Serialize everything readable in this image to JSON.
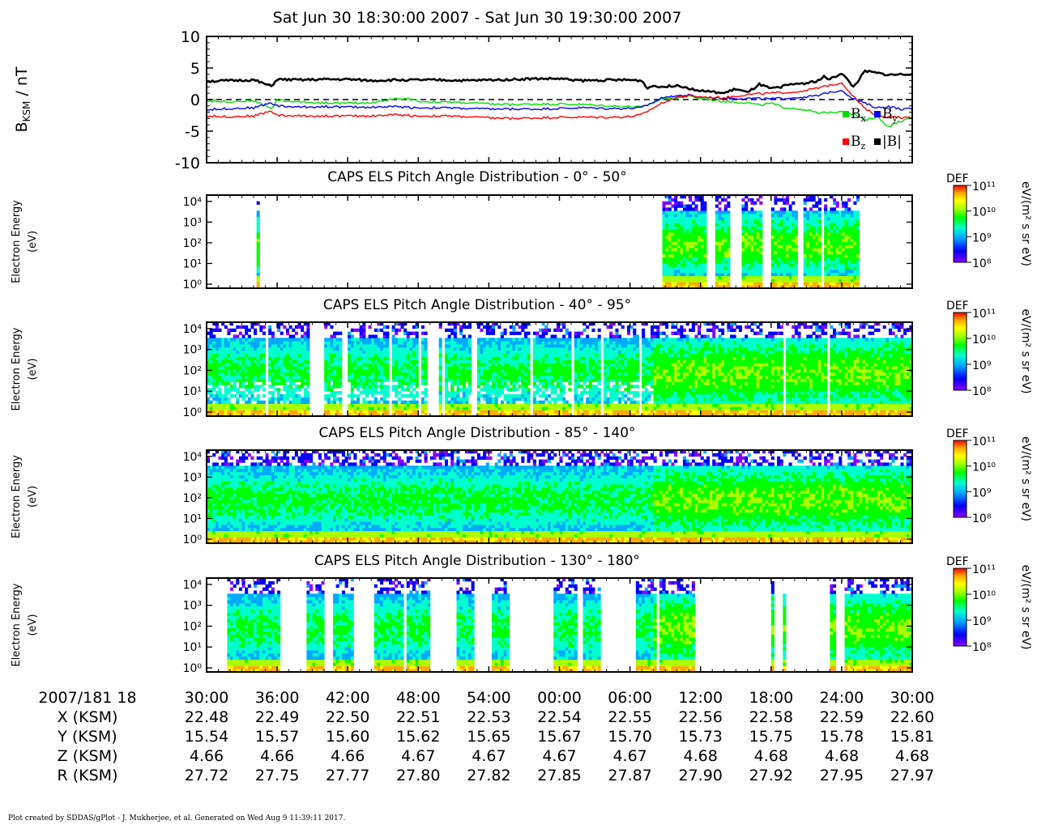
{
  "title": "Sat Jun 30 18:30:00 2007 - Sat Jun 30 19:30:00 2007",
  "footer": "Plot created by SDDAS/gPlot - J. Mukherjee, et al.  Generated on Wed Aug 9 11:39:11 2017.",
  "colors": {
    "bx": "#00dd00",
    "by": "#0000ff",
    "bz": "#ff0000",
    "bmag": "#000000",
    "colormap": [
      "#ffffff",
      "#8800ff",
      "#0000ff",
      "#00aaff",
      "#00ffcc",
      "#00ff00",
      "#aaff00",
      "#ffff00",
      "#ffaa00",
      "#ff0000"
    ]
  },
  "chart_data": [
    {
      "type": "line",
      "ylabel": "B",
      "ylabel_sub": "KSM",
      "ylabel_unit": " / nT",
      "ylim": [
        -10,
        10
      ],
      "yticks": [
        "10",
        "5",
        "0",
        "-5",
        "-10"
      ],
      "xlim_min": [
        30,
        90
      ],
      "zero_line": "dashed",
      "legend": [
        {
          "label": "B",
          "sub": "x",
          "color": "#00dd00"
        },
        {
          "label": "B",
          "sub": "y",
          "color": "#0000ff"
        },
        {
          "label": "B",
          "sub": "z",
          "color": "#ff0000"
        },
        {
          "label": "|B|",
          "sub": "",
          "color": "#000000"
        }
      ],
      "series": [
        {
          "name": "Bx",
          "color": "#00dd00",
          "x": [
            30,
            32,
            34,
            35.5,
            36,
            38,
            40,
            42,
            44,
            46,
            47.5,
            48,
            50,
            52,
            54,
            56,
            58,
            60,
            62,
            64,
            66,
            67,
            68,
            69,
            70,
            70.5,
            71,
            72,
            74,
            76,
            77,
            78,
            79,
            80,
            81,
            82,
            83,
            84,
            85,
            86,
            87,
            88,
            89,
            90
          ],
          "y": [
            -0.2,
            -0.3,
            -0.2,
            -1.4,
            -0.1,
            -0.4,
            -0.5,
            -0.6,
            -0.5,
            0.1,
            0.1,
            -0.3,
            -0.4,
            -0.5,
            -0.7,
            -0.8,
            -0.7,
            -0.7,
            -0.8,
            -1.0,
            -1.1,
            -1.2,
            -0.5,
            0.3,
            0.2,
            0.4,
            0.5,
            0.2,
            -0.3,
            -0.5,
            -0.9,
            -0.6,
            -1.2,
            -1.4,
            -1.6,
            -2.2,
            -2.0,
            -1.8,
            -2.3,
            -3.3,
            -2.7,
            -4.3,
            -3.4,
            -3.0
          ]
        },
        {
          "name": "By",
          "color": "#0000ff",
          "x": [
            30,
            32,
            34,
            35.5,
            36,
            38,
            40,
            42,
            44,
            46,
            48,
            50,
            52,
            54,
            56,
            58,
            60,
            62,
            64,
            66,
            67,
            68,
            69,
            70,
            71,
            72,
            74,
            76,
            78,
            80,
            82,
            83,
            84,
            85,
            86,
            87,
            88,
            89,
            90
          ],
          "y": [
            -1.6,
            -1.4,
            -1.3,
            -0.5,
            -1.0,
            -1.2,
            -1.1,
            -1.2,
            -1.2,
            -1.1,
            -1.3,
            -1.3,
            -1.4,
            -1.5,
            -1.5,
            -1.5,
            -1.4,
            -1.3,
            -1.4,
            -1.4,
            -1.3,
            -0.4,
            0.5,
            0.6,
            0.7,
            0.4,
            0.2,
            0.2,
            0.1,
            0.3,
            0.6,
            1.2,
            1.5,
            0.1,
            -0.6,
            -1.3,
            -1.1,
            -1.5,
            -1.5
          ]
        },
        {
          "name": "Bz",
          "color": "#ff0000",
          "x": [
            30,
            32,
            34,
            35.5,
            36,
            38,
            40,
            42,
            44,
            46,
            48,
            50,
            52,
            54,
            56,
            58,
            60,
            62,
            64,
            66,
            67,
            68,
            69,
            70,
            71,
            72,
            74,
            76,
            78,
            80,
            82,
            83,
            84,
            85,
            86,
            87,
            88,
            89,
            90
          ],
          "y": [
            -2.6,
            -2.7,
            -2.6,
            -1.8,
            -2.5,
            -2.6,
            -2.6,
            -2.6,
            -2.6,
            -2.4,
            -2.6,
            -2.6,
            -2.7,
            -2.9,
            -3.0,
            -2.9,
            -2.8,
            -2.8,
            -2.8,
            -2.7,
            -2.4,
            -1.3,
            -0.3,
            0.4,
            0.6,
            0.4,
            0.3,
            0.8,
            1.0,
            1.2,
            1.8,
            2.3,
            2.7,
            0.5,
            -1.5,
            -2.5,
            -2.8,
            -2.8,
            -3.0
          ]
        },
        {
          "name": "|B|",
          "color": "#000000",
          "x": [
            30,
            32,
            34,
            35.5,
            36,
            38,
            40,
            42,
            44,
            46,
            48,
            50,
            52,
            54,
            56,
            58,
            60,
            62,
            64,
            66,
            67,
            67.5,
            68,
            69,
            70,
            71,
            72,
            74,
            75,
            76,
            77,
            78,
            79,
            80,
            81,
            82,
            82.5,
            83,
            84,
            85,
            86,
            87,
            88,
            89,
            90
          ],
          "y": [
            2.9,
            3.0,
            3.1,
            2.1,
            3.2,
            3.1,
            3.2,
            3.2,
            3.0,
            3.1,
            3.1,
            3.1,
            3.0,
            3.1,
            3.2,
            3.3,
            3.3,
            3.0,
            3.1,
            3.1,
            3.0,
            1.8,
            2.2,
            2.0,
            2.3,
            1.8,
            1.4,
            1.0,
            1.7,
            1.1,
            2.4,
            1.7,
            2.1,
            2.5,
            2.6,
            3.0,
            3.6,
            3.2,
            4.2,
            2.0,
            4.5,
            4.2,
            3.9,
            4.0,
            4.1
          ]
        }
      ]
    },
    {
      "type": "heatmap",
      "title": "CAPS ELS Pitch Angle Distribution - 0° - 50°",
      "ylabel": "Electron Energy",
      "yunit": "(eV)",
      "yticks": [
        "10⁴",
        "10³",
        "10²",
        "10¹",
        "10⁰"
      ],
      "colorbar": {
        "label": "DEF",
        "unit": "eV/(m² s sr eV)",
        "ticks": [
          "10¹¹",
          "10¹⁰",
          "10⁹",
          "10⁸"
        ]
      },
      "profile": "sparse",
      "coverage": [
        [
          34.2,
          34.5
        ],
        [
          68.8,
          72.6
        ],
        [
          73.3,
          74.6
        ],
        [
          75.5,
          77.3
        ],
        [
          78.0,
          80.2
        ],
        [
          80.7,
          82.3
        ],
        [
          82.6,
          85.5
        ]
      ]
    },
    {
      "type": "heatmap",
      "title": "CAPS ELS Pitch Angle Distribution - 40° - 95°",
      "ylabel": "Electron Energy",
      "yunit": "(eV)",
      "yticks": [
        "10⁴",
        "10³",
        "10²",
        "10¹",
        "10⁰"
      ],
      "colorbar": {
        "label": "DEF",
        "unit": "eV/(m² s sr eV)",
        "ticks": [
          "10¹¹",
          "10¹⁰",
          "10⁹",
          "10⁸"
        ]
      },
      "profile": "mid",
      "coverage": [
        [
          30.0,
          34.9
        ],
        [
          35.3,
          38.8
        ],
        [
          40.0,
          41.5
        ],
        [
          41.9,
          48.0
        ],
        [
          48.2,
          48.8
        ],
        [
          49.8,
          52.5
        ],
        [
          53.0,
          90.0
        ]
      ]
    },
    {
      "type": "heatmap",
      "title": "CAPS ELS Pitch Angle Distribution - 85° - 140°",
      "ylabel": "Electron Energy",
      "yunit": "(eV)",
      "yticks": [
        "10⁴",
        "10³",
        "10²",
        "10¹",
        "10⁰"
      ],
      "colorbar": {
        "label": "DEF",
        "unit": "eV/(m² s sr eV)",
        "ticks": [
          "10¹¹",
          "10¹⁰",
          "10⁹",
          "10⁸"
        ]
      },
      "profile": "dense",
      "coverage": [
        [
          30.0,
          90.0
        ]
      ]
    },
    {
      "type": "heatmap",
      "title": "CAPS ELS Pitch Angle Distribution - 130° - 180°",
      "ylabel": "Electron Energy",
      "yunit": "(eV)",
      "yticks": [
        "10⁴",
        "10³",
        "10²",
        "10¹",
        "10⁰"
      ],
      "colorbar": {
        "label": "DEF",
        "unit": "eV/(m² s sr eV)",
        "ticks": [
          "10¹¹",
          "10¹⁰",
          "10⁹",
          "10⁸"
        ]
      },
      "profile": "patchy",
      "coverage": [
        [
          31.8,
          36.2
        ],
        [
          38.5,
          40.1
        ],
        [
          40.7,
          42.4
        ],
        [
          44.3,
          46.7
        ],
        [
          47.0,
          48.9
        ],
        [
          51.3,
          52.8
        ],
        [
          54.2,
          55.7
        ],
        [
          59.4,
          61.5
        ],
        [
          61.9,
          63.6
        ],
        [
          66.5,
          68.2
        ],
        [
          68.4,
          71.5
        ],
        [
          78.0,
          78.2
        ],
        [
          79.0,
          79.3
        ],
        [
          83.1,
          83.5
        ],
        [
          84.3,
          90.0
        ]
      ]
    }
  ],
  "xaxis": {
    "header": "2007/181 18",
    "ticks": [
      "30:00",
      "36:00",
      "42:00",
      "48:00",
      "54:00",
      "00:00",
      "06:00",
      "12:00",
      "18:00",
      "24:00",
      "30:00"
    ],
    "rows": [
      {
        "label": "X (KSM)",
        "values": [
          "22.48",
          "22.49",
          "22.50",
          "22.51",
          "22.53",
          "22.54",
          "22.55",
          "22.56",
          "22.58",
          "22.59",
          "22.60"
        ]
      },
      {
        "label": "Y (KSM)",
        "values": [
          "15.54",
          "15.57",
          "15.60",
          "15.62",
          "15.65",
          "15.67",
          "15.70",
          "15.73",
          "15.75",
          "15.78",
          "15.81"
        ]
      },
      {
        "label": "Z (KSM)",
        "values": [
          "4.66",
          "4.66",
          "4.66",
          "4.67",
          "4.67",
          "4.67",
          "4.67",
          "4.68",
          "4.68",
          "4.68",
          "4.68"
        ]
      },
      {
        "label": "R (KSM)",
        "values": [
          "27.72",
          "27.75",
          "27.77",
          "27.80",
          "27.82",
          "27.85",
          "27.87",
          "27.90",
          "27.92",
          "27.95",
          "27.97"
        ]
      }
    ]
  }
}
